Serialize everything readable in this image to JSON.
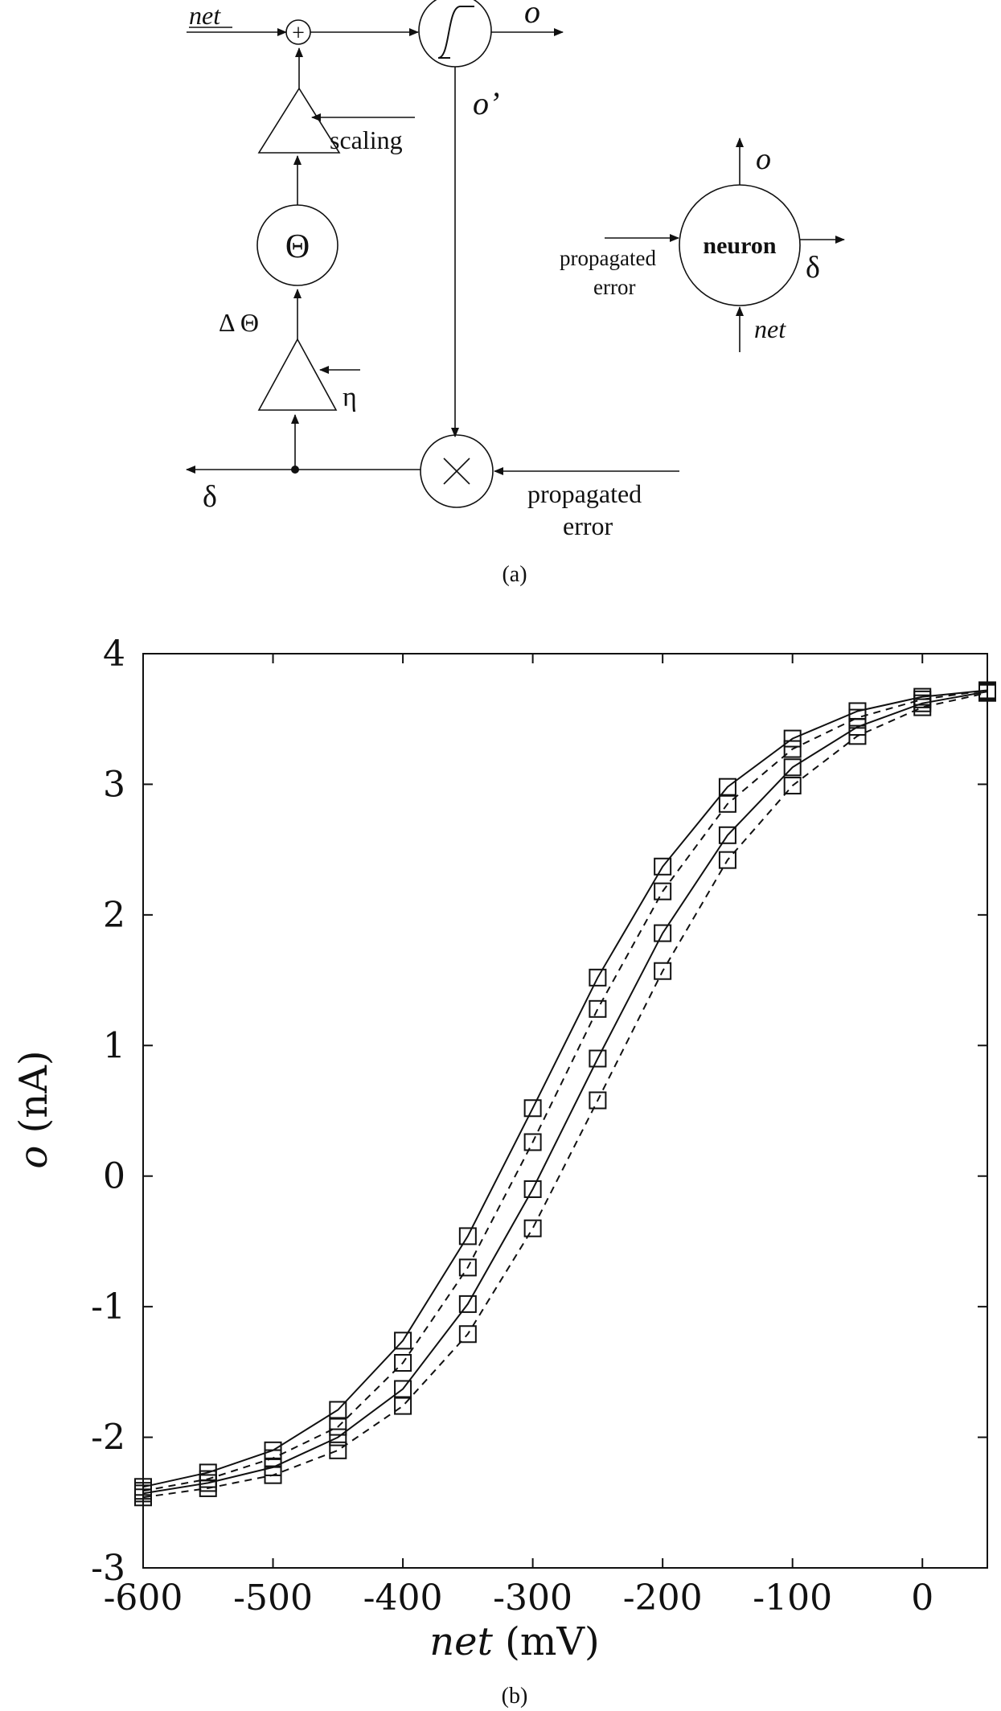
{
  "diagram": {
    "net_label": "net",
    "plus_symbol": "+",
    "o_out_label": "o",
    "o_prime_label": "o’",
    "scaling_label": "scaling",
    "theta_symbol": "Θ",
    "delta_theta_label": "Δ Θ",
    "eta_label": "η",
    "delta_label": "δ",
    "multiply_symbol": "×",
    "propagated_error_line1": "propagated",
    "propagated_error_line2": "error",
    "neuron_label": "neuron",
    "neuron_o_label": "o",
    "neuron_net_label": "net",
    "neuron_delta_label": "δ",
    "neuron_error_line1": "propagated",
    "neuron_error_line2": "error",
    "caption": "(a)"
  },
  "chart_data": {
    "type": "line",
    "xlabel_italic": "net",
    "xlabel_unit": " (mV)",
    "ylabel_italic": "o",
    "ylabel_unit": " (nA)",
    "xlim": [
      -600,
      50
    ],
    "ylim": [
      -3,
      4
    ],
    "xticks": [
      -600,
      -500,
      -400,
      -300,
      -200,
      -100,
      0
    ],
    "yticks": [
      -3,
      -2,
      -1,
      0,
      1,
      2,
      3,
      4
    ],
    "markers": "open-square",
    "series": [
      {
        "style": "solid",
        "x": [
          -600,
          -550,
          -500,
          -450,
          -400,
          -350,
          -300,
          -250,
          -200,
          -150,
          -100,
          -50,
          0,
          50
        ],
        "y": [
          -2.38,
          -2.27,
          -2.1,
          -1.79,
          -1.26,
          -0.46,
          0.52,
          1.52,
          2.37,
          2.98,
          3.35,
          3.56,
          3.67,
          3.72
        ]
      },
      {
        "style": "dashed",
        "x": [
          -600,
          -550,
          -500,
          -450,
          -400,
          -350,
          -300,
          -250,
          -200,
          -150,
          -100,
          -50,
          0,
          50
        ],
        "y": [
          -2.41,
          -2.32,
          -2.16,
          -1.92,
          -1.43,
          -0.7,
          0.26,
          1.28,
          2.18,
          2.85,
          3.27,
          3.51,
          3.65,
          3.72
        ]
      },
      {
        "style": "solid",
        "x": [
          -600,
          -550,
          -500,
          -450,
          -400,
          -350,
          -300,
          -250,
          -200,
          -150,
          -100,
          -50,
          0,
          50
        ],
        "y": [
          -2.43,
          -2.35,
          -2.23,
          -2.0,
          -1.63,
          -0.98,
          -0.1,
          0.9,
          1.86,
          2.61,
          3.13,
          3.44,
          3.62,
          3.71
        ]
      },
      {
        "style": "dashed",
        "x": [
          -600,
          -550,
          -500,
          -450,
          -400,
          -350,
          -300,
          -250,
          -200,
          -150,
          -100,
          -50,
          0,
          50
        ],
        "y": [
          -2.46,
          -2.39,
          -2.29,
          -2.1,
          -1.76,
          -1.21,
          -0.4,
          0.58,
          1.57,
          2.42,
          2.99,
          3.37,
          3.59,
          3.7
        ]
      }
    ],
    "caption": "(b)"
  }
}
